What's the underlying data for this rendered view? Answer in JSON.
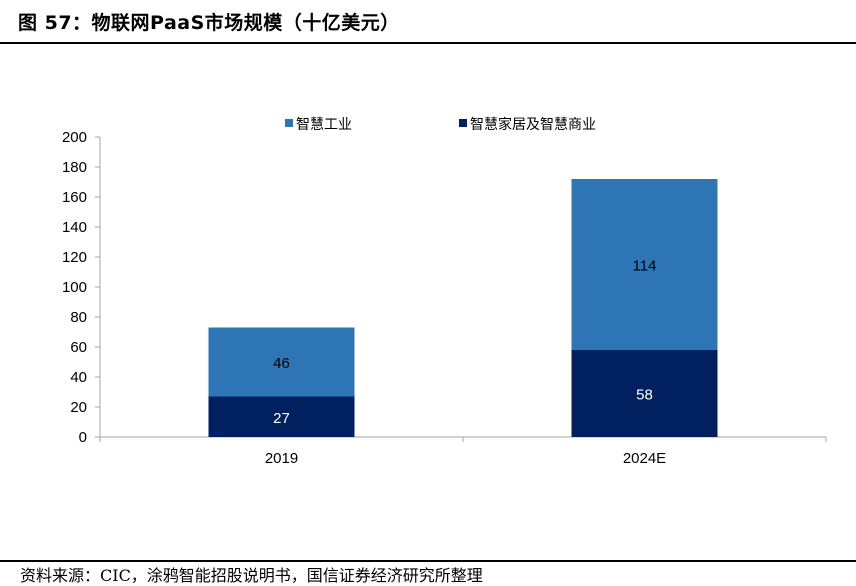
{
  "header": {
    "title": "图 57：物联网PaaS市场规模（十亿美元）"
  },
  "footer": {
    "source": "资料来源：CIC，涂鸦智能招股说明书，国信证券经济研究所整理"
  },
  "colors": {
    "industrial": "#2E75B6",
    "home": "#002060",
    "axis": "#A6A6A6"
  },
  "chart_data": {
    "type": "bar",
    "stacked": true,
    "categories": [
      "2019",
      "2024E"
    ],
    "series": [
      {
        "name": "智慧家居及智慧商业",
        "values": [
          27,
          58
        ],
        "color": "#002060"
      },
      {
        "name": "智慧工业",
        "values": [
          46,
          114
        ],
        "color": "#2E75B6"
      }
    ],
    "ylim": [
      0,
      200
    ],
    "yticks": [
      "0",
      "20",
      "40",
      "60",
      "80",
      "100",
      "120",
      "140",
      "160",
      "180",
      "200"
    ],
    "legend": {
      "position": "top",
      "order": [
        "智慧工业",
        "智慧家居及智慧商业"
      ]
    },
    "grid": false,
    "data_labels": true
  }
}
